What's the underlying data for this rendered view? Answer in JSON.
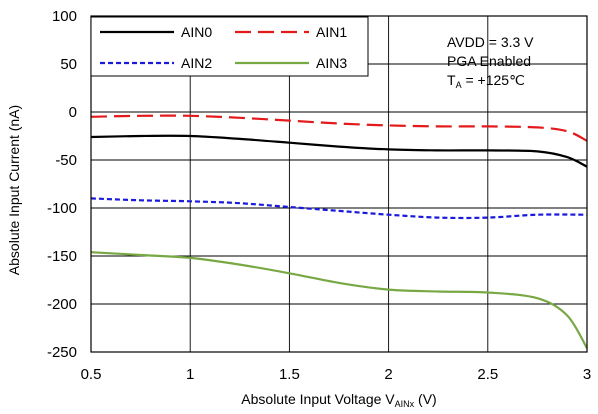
{
  "chart_data": {
    "type": "line",
    "xlabel": "Absolute Input Voltage V",
    "xlabel_sub": "AINx",
    "xlabel_unit": " (V)",
    "ylabel": "Absolute Input Current (nA)",
    "xlim": [
      0.5,
      3
    ],
    "ylim": [
      -250,
      100
    ],
    "xticks": [
      0.5,
      1,
      1.5,
      2,
      2.5,
      3
    ],
    "xtick_labels": [
      "0.5",
      "1",
      "1.5",
      "2",
      "2.5",
      "3"
    ],
    "yticks": [
      100,
      50,
      0,
      -50,
      -100,
      -150,
      -200,
      -250
    ],
    "ytick_labels": [
      "100",
      "50",
      "0",
      "-50",
      "-100",
      "-150",
      "-200",
      "-250"
    ],
    "grid": true,
    "legend": "top-left",
    "series": [
      {
        "name": "AIN0",
        "color": "#000000",
        "dash": "solid",
        "x": [
          0.5,
          0.75,
          1.0,
          1.25,
          1.5,
          1.75,
          2.0,
          2.25,
          2.5,
          2.75,
          2.9,
          3.0
        ],
        "y": [
          -26,
          -25,
          -25,
          -28,
          -32,
          -36,
          -39,
          -40,
          -40,
          -41,
          -47,
          -57
        ]
      },
      {
        "name": "AIN1",
        "color": "#e31a1c",
        "dash": "dashed",
        "x": [
          0.5,
          0.75,
          1.0,
          1.25,
          1.5,
          1.75,
          2.0,
          2.25,
          2.5,
          2.75,
          2.9,
          3.0
        ],
        "y": [
          -5,
          -4,
          -4,
          -6,
          -9,
          -12,
          -14,
          -15,
          -15,
          -16,
          -20,
          -30
        ]
      },
      {
        "name": "AIN2",
        "color": "#1a1adc",
        "dash": "dotted",
        "x": [
          0.5,
          0.75,
          1.0,
          1.25,
          1.5,
          1.75,
          2.0,
          2.25,
          2.5,
          2.75,
          3.0
        ],
        "y": [
          -90,
          -92,
          -93,
          -95,
          -99,
          -103,
          -107,
          -110,
          -110,
          -107,
          -107
        ]
      },
      {
        "name": "AIN3",
        "color": "#77a844",
        "dash": "solid",
        "x": [
          0.5,
          0.75,
          1.0,
          1.25,
          1.5,
          1.75,
          2.0,
          2.25,
          2.5,
          2.75,
          2.9,
          3.0
        ],
        "y": [
          -146,
          -149,
          -152,
          -159,
          -168,
          -178,
          -185,
          -187,
          -188,
          -194,
          -212,
          -246
        ]
      }
    ],
    "annotation": {
      "line1": "AVDD = 3.3 V",
      "line2": "PGA Enabled",
      "line3_main": "T",
      "line3_sub": "A",
      "line3_rest": " = +125℃"
    }
  }
}
